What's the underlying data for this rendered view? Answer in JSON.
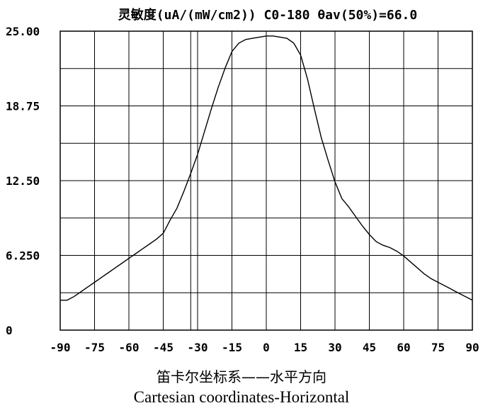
{
  "chart_data": {
    "type": "line",
    "title": "灵敏度(uA/(mW/cm2)) C0-180 θav(50%)=66.0",
    "xlabel": "",
    "ylabel": "",
    "xlim": [
      -90,
      90
    ],
    "ylim": [
      0,
      25
    ],
    "x_ticks": [
      "-90",
      "-75",
      "-60",
      "-45",
      "-30",
      "-15",
      "0",
      "15",
      "30",
      "45",
      "60",
      "75",
      "90"
    ],
    "y_ticks": [
      "25.00",
      "18.75",
      "12.50",
      "6.250",
      "0"
    ],
    "grid": true,
    "vertical_markers": [
      -33,
      -30,
      30
    ],
    "series": [
      {
        "x": [
          -90,
          -87,
          -84,
          -81,
          -78,
          -75,
          -72,
          -69,
          -66,
          -63,
          -60,
          -57,
          -54,
          -51,
          -48,
          -45,
          -42,
          -39,
          -36,
          -33,
          -30,
          -27,
          -24,
          -21,
          -18,
          -15,
          -12,
          -9,
          -6,
          -3,
          0,
          3,
          6,
          9,
          12,
          15,
          18,
          21,
          24,
          27,
          30,
          33,
          36,
          39,
          42,
          45,
          48,
          51,
          54,
          57,
          60,
          63,
          66,
          69,
          72,
          75,
          78,
          81,
          84,
          87,
          90
        ],
        "y": [
          2.5,
          2.5,
          2.8,
          3.2,
          3.6,
          4.0,
          4.4,
          4.8,
          5.2,
          5.6,
          6.0,
          6.4,
          6.8,
          7.2,
          7.6,
          8.1,
          9.2,
          10.2,
          11.6,
          13.1,
          14.7,
          16.6,
          18.5,
          20.3,
          21.9,
          23.3,
          24.0,
          24.3,
          24.4,
          24.5,
          24.6,
          24.6,
          24.5,
          24.4,
          24.0,
          23.0,
          21.0,
          18.5,
          16.1,
          14.2,
          12.4,
          11.0,
          10.3,
          9.5,
          8.7,
          8.0,
          7.4,
          7.1,
          6.9,
          6.6,
          6.2,
          5.7,
          5.2,
          4.7,
          4.3,
          4.0,
          3.7,
          3.4,
          3.1,
          2.8,
          2.5
        ]
      }
    ]
  },
  "caption_cn": "笛卡尔坐标系——水平方向",
  "caption_en": "Cartesian coordinates-Horizontal",
  "colors": {
    "line": "#000000",
    "grid": "#000000",
    "background": "#ffffff"
  }
}
